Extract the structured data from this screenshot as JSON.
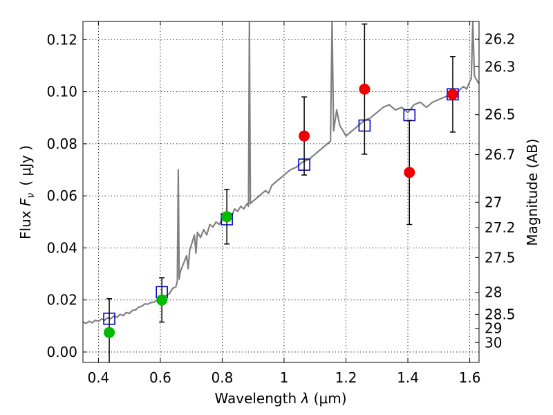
{
  "chart_data": {
    "type": "scatter",
    "xlabel_prefix": "Wavelength ",
    "xlabel_sym": "λ",
    "xlabel_unit": " (μm)",
    "ylabel_prefix": "Flux ",
    "ylabel_sym": "F",
    "ylabel_sub": "ν",
    "ylabel_unit": "( μJy )",
    "y2label": "Magnitude (AB)",
    "xlim": [
      0.35,
      1.63
    ],
    "ylim": [
      -0.004,
      0.127
    ],
    "grid": true,
    "x_ticks": [
      0.4,
      0.6,
      0.8,
      1.0,
      1.2,
      1.4,
      1.6
    ],
    "x_tick_labels": [
      "0.4",
      "0.6",
      "0.8",
      "1",
      "1.2",
      "1.4",
      "1.6"
    ],
    "y_ticks": [
      0.0,
      0.02,
      0.04,
      0.06,
      0.08,
      0.1,
      0.12
    ],
    "y_tick_labels": [
      "0.00",
      "0.02",
      "0.04",
      "0.06",
      "0.08",
      "0.10",
      "0.12"
    ],
    "mag_ticks": [
      "26.2",
      "26.3",
      "26.5",
      "26.7",
      "27",
      "27.2",
      "27.5",
      "28",
      "28.5",
      "29",
      "30"
    ],
    "colors": {
      "spectrum": "#808080",
      "model_marker": "#0000cc",
      "green": "#00bb00",
      "red": "#ee0000",
      "errorbar": "#000000"
    },
    "series": [
      {
        "kind": "spectrum",
        "points": [
          [
            0.35,
            0.0115
          ],
          [
            0.36,
            0.011
          ],
          [
            0.37,
            0.0118
          ],
          [
            0.38,
            0.0112
          ],
          [
            0.39,
            0.0122
          ],
          [
            0.4,
            0.0118
          ],
          [
            0.41,
            0.0127
          ],
          [
            0.42,
            0.0122
          ],
          [
            0.43,
            0.0132
          ],
          [
            0.44,
            0.0128
          ],
          [
            0.45,
            0.0138
          ],
          [
            0.46,
            0.0133
          ],
          [
            0.47,
            0.0145
          ],
          [
            0.48,
            0.014
          ],
          [
            0.49,
            0.0152
          ],
          [
            0.5,
            0.0148
          ],
          [
            0.51,
            0.016
          ],
          [
            0.52,
            0.0162
          ],
          [
            0.53,
            0.0172
          ],
          [
            0.54,
            0.0176
          ],
          [
            0.55,
            0.0185
          ],
          [
            0.56,
            0.0184
          ],
          [
            0.57,
            0.019
          ],
          [
            0.58,
            0.0192
          ],
          [
            0.59,
            0.0198
          ],
          [
            0.6,
            0.0202
          ],
          [
            0.61,
            0.0212
          ],
          [
            0.62,
            0.0218
          ],
          [
            0.63,
            0.0225
          ],
          [
            0.64,
            0.0245
          ],
          [
            0.65,
            0.025
          ],
          [
            0.655,
            0.027
          ],
          [
            0.658,
            0.07
          ],
          [
            0.661,
            0.028
          ],
          [
            0.665,
            0.031
          ],
          [
            0.675,
            0.034
          ],
          [
            0.685,
            0.037
          ],
          [
            0.69,
            0.032
          ],
          [
            0.695,
            0.039
          ],
          [
            0.7,
            0.041
          ],
          [
            0.71,
            0.045
          ],
          [
            0.715,
            0.038
          ],
          [
            0.72,
            0.046
          ],
          [
            0.73,
            0.044
          ],
          [
            0.74,
            0.047
          ],
          [
            0.75,
            0.045
          ],
          [
            0.76,
            0.049
          ],
          [
            0.77,
            0.048
          ],
          [
            0.78,
            0.05
          ],
          [
            0.79,
            0.049
          ],
          [
            0.8,
            0.051
          ],
          [
            0.81,
            0.052
          ],
          [
            0.82,
            0.053
          ],
          [
            0.83,
            0.052
          ],
          [
            0.84,
            0.055
          ],
          [
            0.85,
            0.054
          ],
          [
            0.86,
            0.056
          ],
          [
            0.87,
            0.055
          ],
          [
            0.88,
            0.057
          ],
          [
            0.885,
            0.056
          ],
          [
            0.888,
            0.127
          ],
          [
            0.891,
            0.057
          ],
          [
            0.9,
            0.058
          ],
          [
            0.92,
            0.06
          ],
          [
            0.94,
            0.062
          ],
          [
            0.95,
            0.061
          ],
          [
            0.96,
            0.064
          ],
          [
            0.98,
            0.066
          ],
          [
            1.0,
            0.068
          ],
          [
            1.02,
            0.07
          ],
          [
            1.04,
            0.071
          ],
          [
            1.06,
            0.073
          ],
          [
            1.08,
            0.074
          ],
          [
            1.1,
            0.076
          ],
          [
            1.12,
            0.078
          ],
          [
            1.13,
            0.079
          ],
          [
            1.14,
            0.08
          ],
          [
            1.15,
            0.081
          ],
          [
            1.155,
            0.127
          ],
          [
            1.16,
            0.085
          ],
          [
            1.17,
            0.093
          ],
          [
            1.18,
            0.087
          ],
          [
            1.2,
            0.083
          ],
          [
            1.22,
            0.085
          ],
          [
            1.24,
            0.087
          ],
          [
            1.26,
            0.089
          ],
          [
            1.28,
            0.09
          ],
          [
            1.3,
            0.092
          ],
          [
            1.32,
            0.094
          ],
          [
            1.34,
            0.095
          ],
          [
            1.36,
            0.093
          ],
          [
            1.38,
            0.094
          ],
          [
            1.4,
            0.092
          ],
          [
            1.42,
            0.095
          ],
          [
            1.44,
            0.096
          ],
          [
            1.46,
            0.094
          ],
          [
            1.48,
            0.096
          ],
          [
            1.5,
            0.097
          ],
          [
            1.52,
            0.098
          ],
          [
            1.54,
            0.099
          ],
          [
            1.56,
            0.1
          ],
          [
            1.58,
            0.102
          ],
          [
            1.59,
            0.101
          ],
          [
            1.6,
            0.104
          ],
          [
            1.605,
            0.105
          ],
          [
            1.61,
            0.127
          ],
          [
            1.615,
            0.106
          ],
          [
            1.63,
            0.103
          ]
        ]
      },
      {
        "kind": "model_squares",
        "points": [
          [
            0.435,
            0.0128
          ],
          [
            0.605,
            0.023
          ],
          [
            0.815,
            0.051
          ],
          [
            1.065,
            0.072
          ],
          [
            1.26,
            0.087
          ],
          [
            1.405,
            0.091
          ],
          [
            1.545,
            0.099
          ]
        ]
      },
      {
        "kind": "observed_green",
        "points": [
          {
            "x": 0.435,
            "y": 0.0075,
            "err": 0.013
          },
          {
            "x": 0.605,
            "y": 0.02,
            "err": 0.0085
          },
          {
            "x": 0.815,
            "y": 0.052,
            "err": 0.0105
          }
        ]
      },
      {
        "kind": "observed_red",
        "points": [
          {
            "x": 1.065,
            "y": 0.083,
            "err": 0.015
          },
          {
            "x": 1.26,
            "y": 0.101,
            "err": 0.025
          },
          {
            "x": 1.405,
            "y": 0.069,
            "err": 0.02
          },
          {
            "x": 1.545,
            "y": 0.099,
            "err": 0.0145
          }
        ]
      }
    ]
  }
}
